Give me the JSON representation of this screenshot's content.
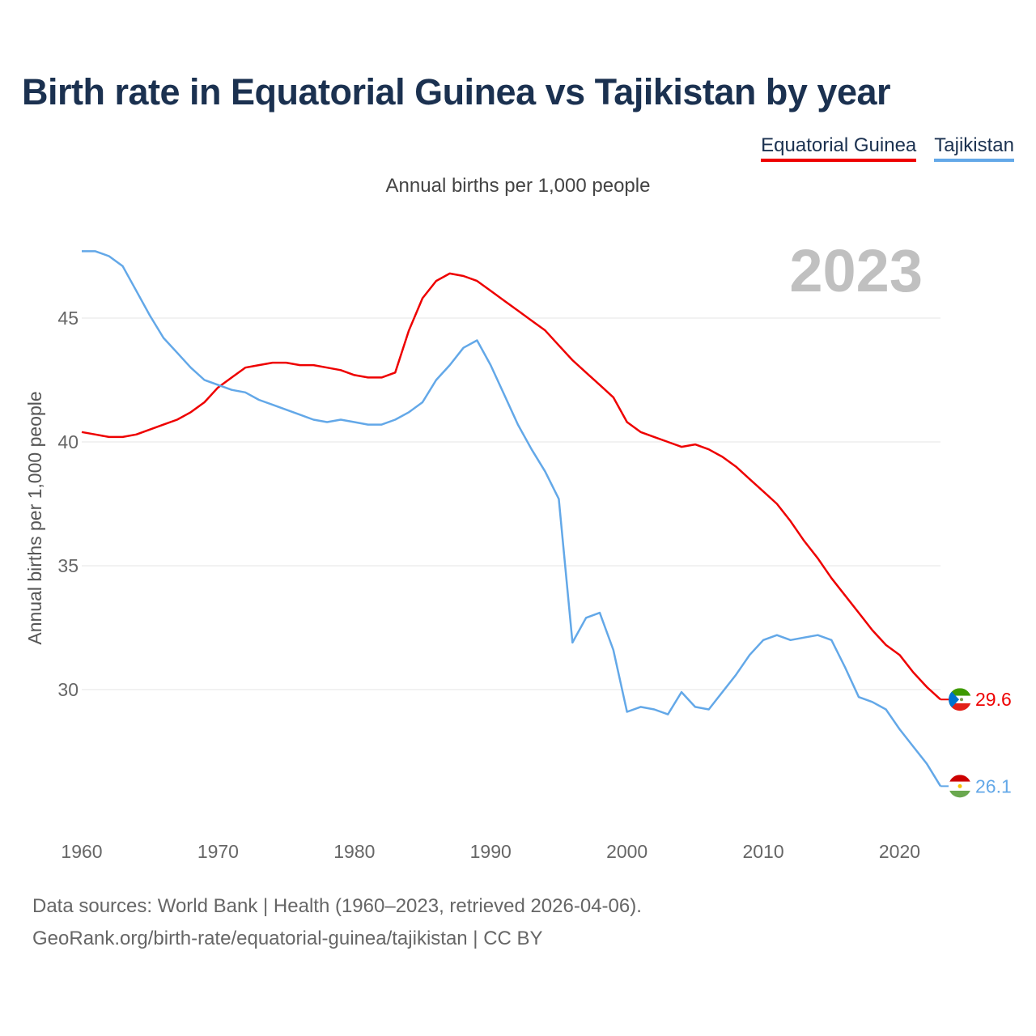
{
  "title": "Birth rate in Equatorial Guinea vs Tajikistan by year",
  "legend": [
    {
      "name": "Equatorial Guinea",
      "color": "#ee0000"
    },
    {
      "name": "Tajikistan",
      "color": "#63a8e8"
    }
  ],
  "footer": {
    "line1": "Data sources: World Bank | Health (1960–2023, retrieved 2026-04-06).",
    "line2": "GeoRank.org/birth-rate/equatorial-guinea/tajikistan | CC BY"
  },
  "chart_data": {
    "type": "line",
    "title": "Birth rate in Equatorial Guinea vs Tajikistan by year",
    "subtitle": "Annual births per 1,000 people",
    "ylabel": "Annual births per 1,000 people",
    "xlabel": "",
    "year_label": "2023",
    "xlim": [
      1960,
      2023
    ],
    "ylim": [
      25,
      48.5
    ],
    "x_ticks": [
      1960,
      1970,
      1980,
      1990,
      2000,
      2010,
      2020
    ],
    "y_ticks": [
      30,
      35,
      40,
      45
    ],
    "grid": true,
    "x": [
      1960,
      1961,
      1962,
      1963,
      1964,
      1965,
      1966,
      1967,
      1968,
      1969,
      1970,
      1971,
      1972,
      1973,
      1974,
      1975,
      1976,
      1977,
      1978,
      1979,
      1980,
      1981,
      1982,
      1983,
      1984,
      1985,
      1986,
      1987,
      1988,
      1989,
      1990,
      1991,
      1992,
      1993,
      1994,
      1995,
      1996,
      1997,
      1998,
      1999,
      2000,
      2001,
      2002,
      2003,
      2004,
      2005,
      2006,
      2007,
      2008,
      2009,
      2010,
      2011,
      2012,
      2013,
      2014,
      2015,
      2016,
      2017,
      2018,
      2019,
      2020,
      2021,
      2022,
      2023
    ],
    "series": [
      {
        "name": "Equatorial Guinea",
        "color": "#ee0000",
        "end_label": "29.6",
        "values": [
          40.4,
          40.3,
          40.2,
          40.2,
          40.3,
          40.5,
          40.7,
          40.9,
          41.2,
          41.6,
          42.2,
          42.6,
          43.0,
          43.1,
          43.2,
          43.2,
          43.1,
          43.1,
          43.0,
          42.9,
          42.7,
          42.6,
          42.6,
          42.8,
          44.5,
          45.8,
          46.5,
          46.8,
          46.7,
          46.5,
          46.1,
          45.7,
          45.3,
          44.9,
          44.5,
          43.9,
          43.3,
          42.8,
          42.3,
          41.8,
          40.8,
          40.4,
          40.2,
          40.0,
          39.8,
          39.9,
          39.7,
          39.4,
          39.0,
          38.5,
          38.0,
          37.5,
          36.8,
          36.0,
          35.3,
          34.5,
          33.8,
          33.1,
          32.4,
          31.8,
          31.4,
          30.7,
          30.1,
          29.6
        ]
      },
      {
        "name": "Tajikistan",
        "color": "#63a8e8",
        "end_label": "26.1",
        "values": [
          47.7,
          47.7,
          47.5,
          47.1,
          46.1,
          45.1,
          44.2,
          43.6,
          43.0,
          42.5,
          42.3,
          42.1,
          42.0,
          41.7,
          41.5,
          41.3,
          41.1,
          40.9,
          40.8,
          40.9,
          40.8,
          40.7,
          40.7,
          40.9,
          41.2,
          41.6,
          42.5,
          43.1,
          43.8,
          44.1,
          43.1,
          41.9,
          40.7,
          39.7,
          38.8,
          37.7,
          31.9,
          32.9,
          33.1,
          31.6,
          29.1,
          29.3,
          29.2,
          29.0,
          29.9,
          29.3,
          29.2,
          29.9,
          30.6,
          31.4,
          32.0,
          32.2,
          32.0,
          32.1,
          32.2,
          32.0,
          30.9,
          29.7,
          29.5,
          29.2,
          28.4,
          27.7,
          27.0,
          26.1
        ]
      }
    ]
  }
}
